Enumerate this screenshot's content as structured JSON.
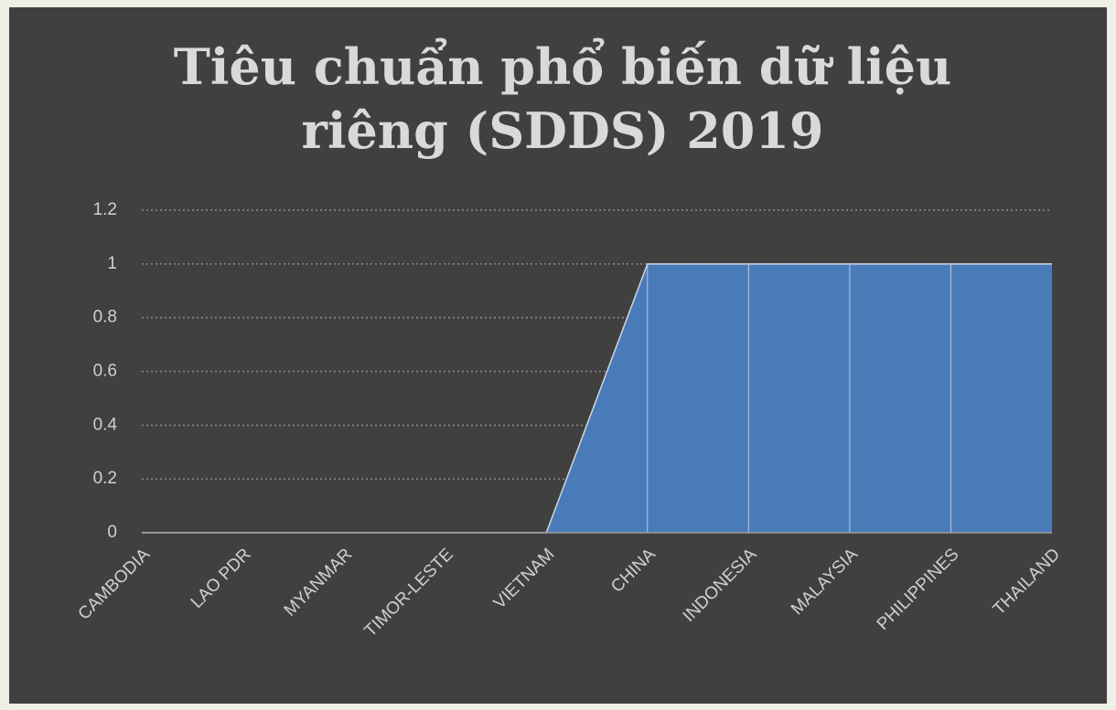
{
  "chart_data": {
    "type": "area",
    "title": "Tiêu chuẩn phổ biến dữ liệu riêng (SDDS) 2019",
    "categories": [
      "CAMBODIA",
      "LAO PDR",
      "MYANMAR",
      "TIMOR-LESTE",
      "VIETNAM",
      "CHINA",
      "INDONESIA",
      "MALAYSIA",
      "PHILIPPINES",
      "THAILAND"
    ],
    "values": [
      0,
      0,
      0,
      0,
      0,
      1,
      1,
      1,
      1,
      1
    ],
    "color": "#4a7bb9",
    "ylim": [
      0,
      1.2
    ],
    "yticks": [
      0,
      0.2,
      0.4,
      0.6,
      0.8,
      1,
      1.2
    ],
    "grid": true
  }
}
